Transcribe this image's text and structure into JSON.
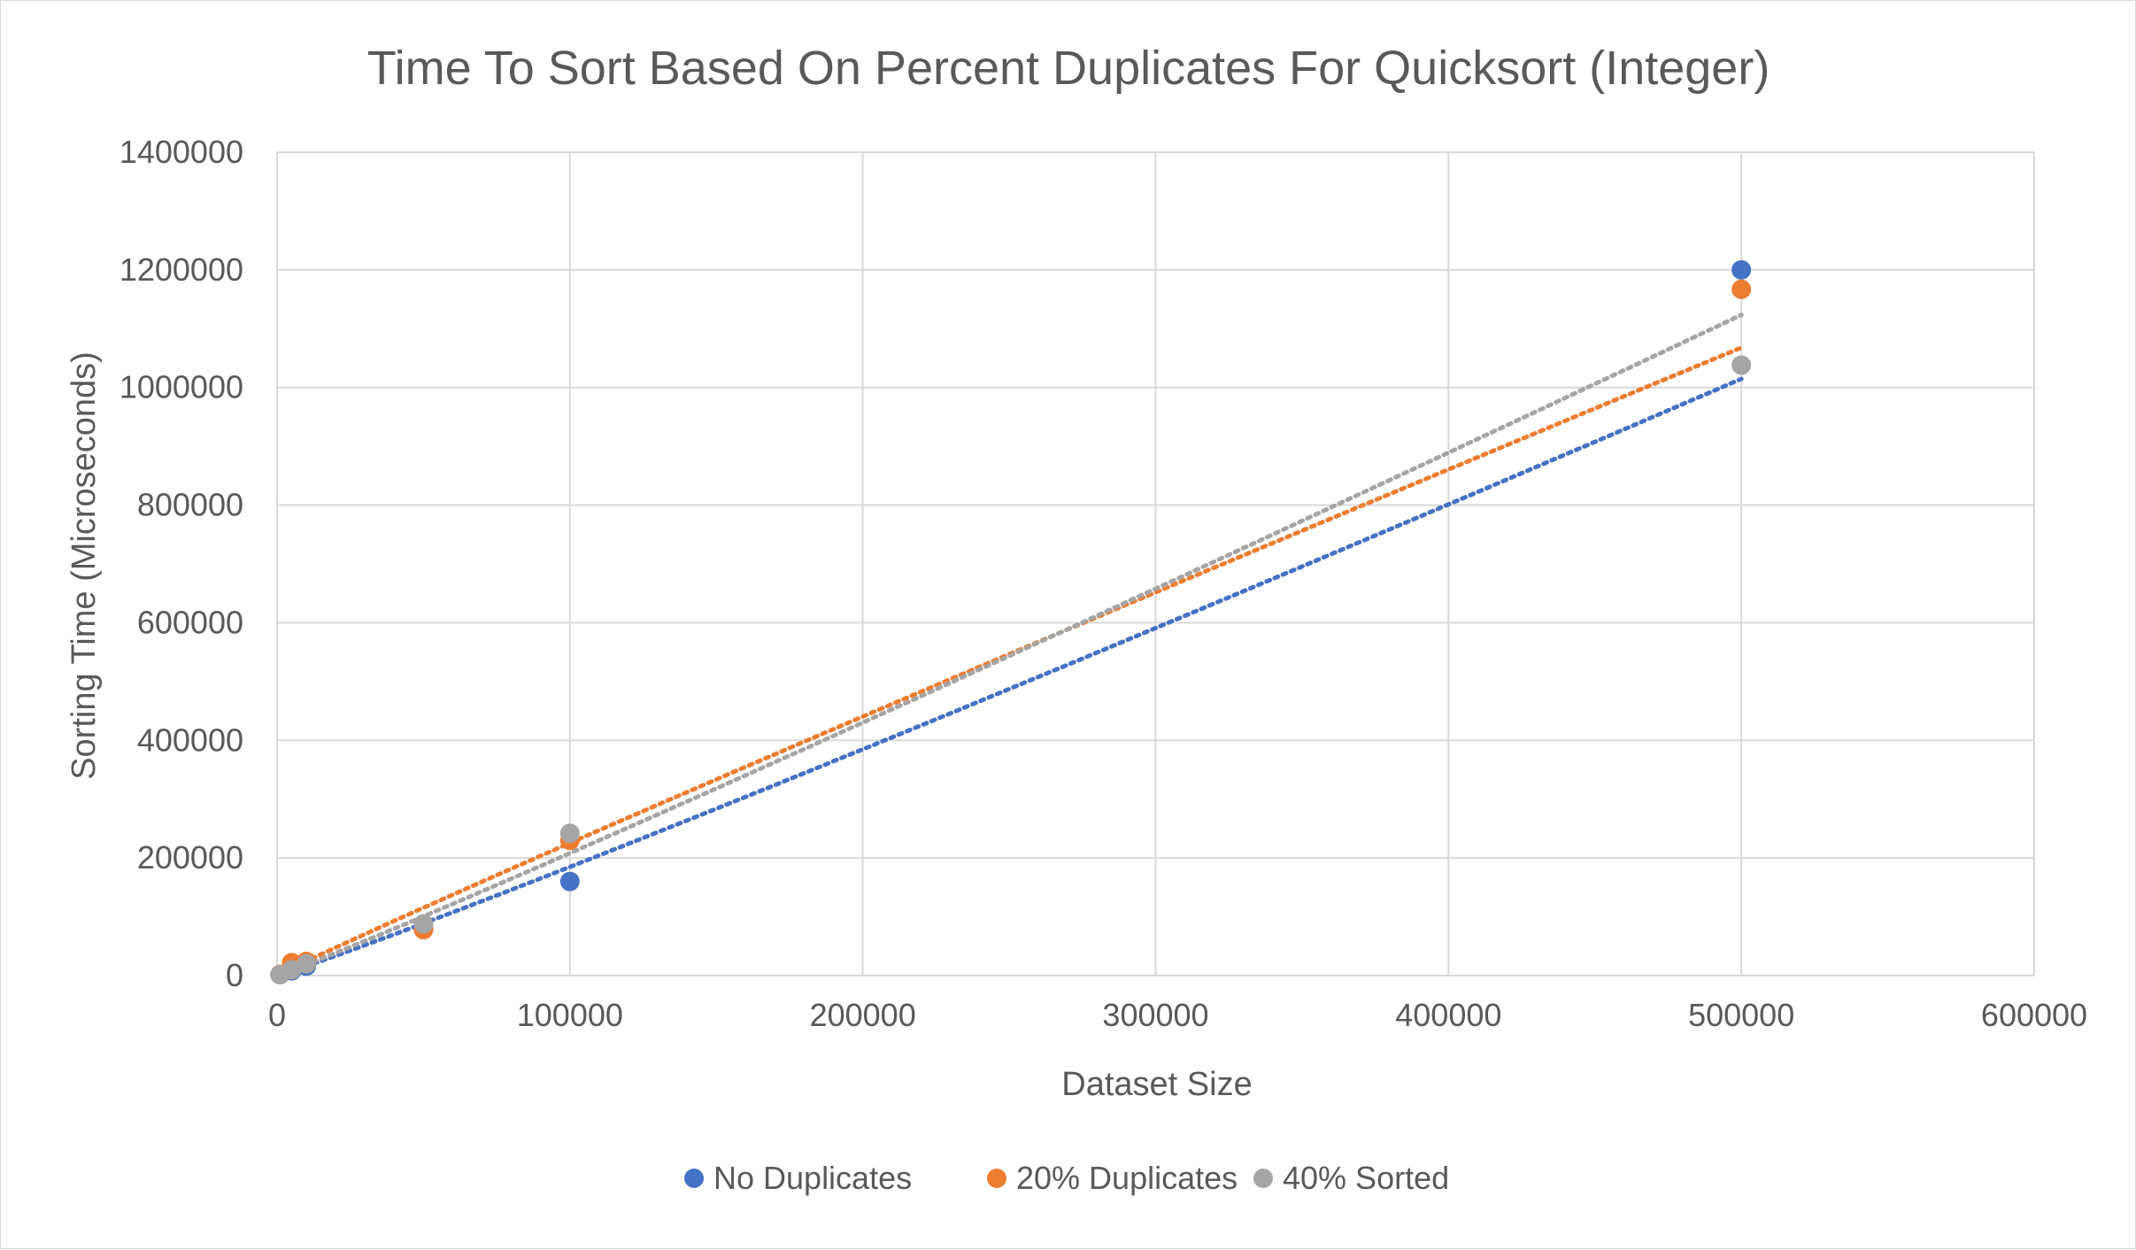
{
  "chart_data": {
    "type": "scatter",
    "title": "Time To Sort Based On Percent Duplicates For Quicksort (Integer)",
    "xlabel": "Dataset Size",
    "ylabel": "Sorting Time (Microseconds)",
    "xlim": [
      0,
      600000
    ],
    "ylim": [
      0,
      1400000
    ],
    "x_ticks": [
      "0",
      "100000",
      "200000",
      "300000",
      "400000",
      "500000",
      "600000"
    ],
    "y_ticks": [
      "0",
      "200000",
      "400000",
      "600000",
      "800000",
      "1000000",
      "1200000",
      "1400000"
    ],
    "grid": true,
    "legend_position": "bottom",
    "trendline": "dotted",
    "series": [
      {
        "name": "No Duplicates",
        "color": "#4472C4",
        "points": [
          [
            1000,
            1500
          ],
          [
            5000,
            8000
          ],
          [
            10000,
            16000
          ],
          [
            50000,
            80000
          ],
          [
            100000,
            160000
          ],
          [
            500000,
            1200000
          ]
        ]
      },
      {
        "name": "20% Duplicates",
        "color": "#ED7D31",
        "points": [
          [
            1000,
            2000
          ],
          [
            5000,
            22000
          ],
          [
            10000,
            24000
          ],
          [
            50000,
            78000
          ],
          [
            100000,
            230000
          ],
          [
            500000,
            1167000
          ]
        ]
      },
      {
        "name": "40% Sorted",
        "color": "#A5A5A5",
        "points": [
          [
            1000,
            1500
          ],
          [
            5000,
            10000
          ],
          [
            10000,
            20000
          ],
          [
            50000,
            88000
          ],
          [
            100000,
            242000
          ],
          [
            500000,
            1038000
          ]
        ]
      }
    ]
  }
}
